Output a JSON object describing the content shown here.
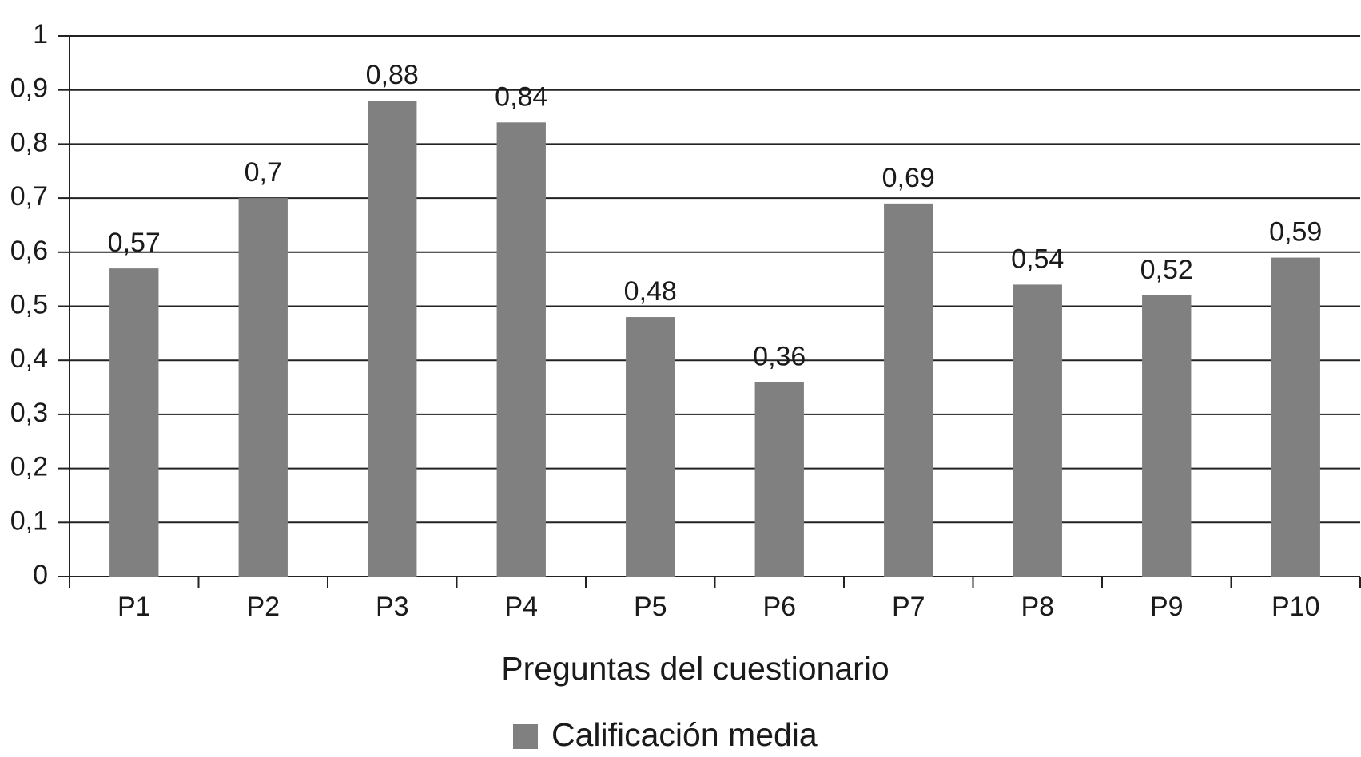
{
  "chart_data": {
    "type": "bar",
    "x_label": "Preguntas del cuestionario",
    "categories": [
      "P1",
      "P2",
      "P3",
      "P4",
      "P5",
      "P6",
      "P7",
      "P8",
      "P9",
      "P10"
    ],
    "series": [
      {
        "name": "Calificación media",
        "color": "#808080",
        "values": [
          0.57,
          0.7,
          0.88,
          0.84,
          0.48,
          0.36,
          0.69,
          0.54,
          0.52,
          0.59
        ],
        "value_labels": [
          "0,57",
          "0,7",
          "0,88",
          "0,84",
          "0,48",
          "0,36",
          "0,69",
          "0,54",
          "0,52",
          "0,59"
        ]
      }
    ],
    "ylim": [
      0,
      1
    ],
    "yticks": [
      0,
      {
        "value": 0.1,
        "label": "0,1"
      },
      {
        "value": 0.2,
        "label": "0,2"
      },
      {
        "value": 0.3,
        "label": "0,3"
      },
      {
        "value": 0.4,
        "label": "0,4"
      },
      {
        "value": 0.5,
        "label": "0,5"
      },
      {
        "value": 0.6,
        "label": "0,6"
      },
      {
        "value": 0.7,
        "label": "0,7"
      },
      {
        "value": 0.8,
        "label": "0,8"
      },
      {
        "value": 0.9,
        "label": "0,9"
      },
      1
    ],
    "grid": true,
    "legend": "bottom"
  }
}
